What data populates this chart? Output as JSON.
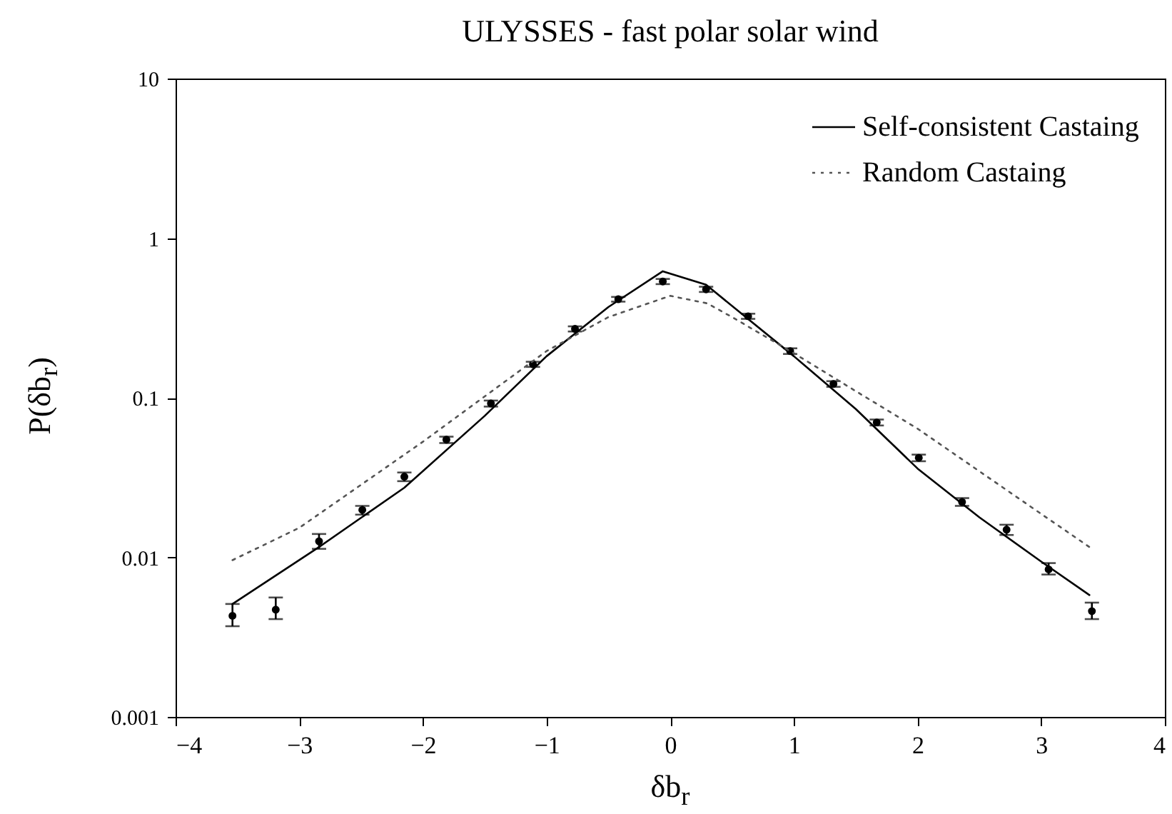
{
  "chart_data": {
    "type": "line",
    "title": "ULYSSES - fast polar solar wind",
    "xlabel": "δb$_{r}$",
    "ylabel": "P(δb$_{r}$)",
    "xlim": [
      -4,
      4
    ],
    "xticks": [
      -4,
      -3,
      -2,
      -1,
      0,
      1,
      2,
      3,
      4
    ],
    "ylim": [
      0.001,
      10
    ],
    "yticks": [
      0.001,
      0.01,
      0.1,
      1,
      10
    ],
    "log": "y",
    "grid": false,
    "legend": "top right",
    "series": [
      {
        "type": "scatter",
        "marker": "circle",
        "color": "#000000",
        "x": [
          -3.54,
          -3.19,
          -2.84,
          -2.49,
          -2.15,
          -1.81,
          -1.45,
          -1.11,
          -0.77,
          -0.42,
          -0.06,
          0.29,
          0.63,
          0.97,
          1.32,
          1.67,
          2.01,
          2.36,
          2.72,
          3.06,
          3.41
        ],
        "values": [
          0.0043,
          0.0047,
          0.0126,
          0.0198,
          0.032,
          0.0546,
          0.092,
          0.162,
          0.27,
          0.414,
          0.535,
          0.478,
          0.324,
          0.196,
          0.122,
          0.07,
          0.042,
          0.0222,
          0.0149,
          0.0084,
          0.0046
        ],
        "errors": [
          [
            0.0037,
            0.0051
          ],
          [
            0.0041,
            0.0056
          ],
          [
            0.0113,
            0.014
          ],
          [
            0.0185,
            0.021
          ],
          [
            0.03,
            0.034
          ],
          [
            0.052,
            0.057
          ],
          [
            0.088,
            0.096
          ],
          [
            0.156,
            0.168
          ],
          [
            0.26,
            0.28
          ],
          [
            0.4,
            0.428
          ],
          [
            0.515,
            0.555
          ],
          [
            0.46,
            0.496
          ],
          [
            0.312,
            0.336
          ],
          [
            0.188,
            0.204
          ],
          [
            0.117,
            0.127
          ],
          [
            0.067,
            0.073
          ],
          [
            0.04,
            0.044
          ],
          [
            0.021,
            0.0235
          ],
          [
            0.0138,
            0.016
          ],
          [
            0.0078,
            0.0092
          ],
          [
            0.0041,
            0.0052
          ]
        ]
      },
      {
        "name": "Self-consistent Castaing",
        "color": "#000000",
        "line_style": "solid",
        "x": [
          -3.54,
          -2.84,
          -2.15,
          -1.5,
          -1,
          -0.5,
          -0.06,
          0.29,
          1,
          1.5,
          2,
          2.5,
          3,
          3.39
        ],
        "values": [
          0.0051,
          0.0116,
          0.0273,
          0.077,
          0.182,
          0.37,
          0.62,
          0.51,
          0.182,
          0.085,
          0.036,
          0.0178,
          0.0094,
          0.0058
        ]
      },
      {
        "name": "Random Castaing",
        "color": "#555555",
        "line_style": "dotted",
        "x": [
          -3.54,
          -3,
          -2,
          -1,
          -0.5,
          0,
          0.3,
          0.5,
          1,
          1.5,
          2,
          2.5,
          3,
          3.39
        ],
        "values": [
          0.0096,
          0.0153,
          0.053,
          0.196,
          0.32,
          0.435,
          0.39,
          0.32,
          0.19,
          0.11,
          0.064,
          0.0346,
          0.0187,
          0.0116
        ]
      }
    ]
  }
}
